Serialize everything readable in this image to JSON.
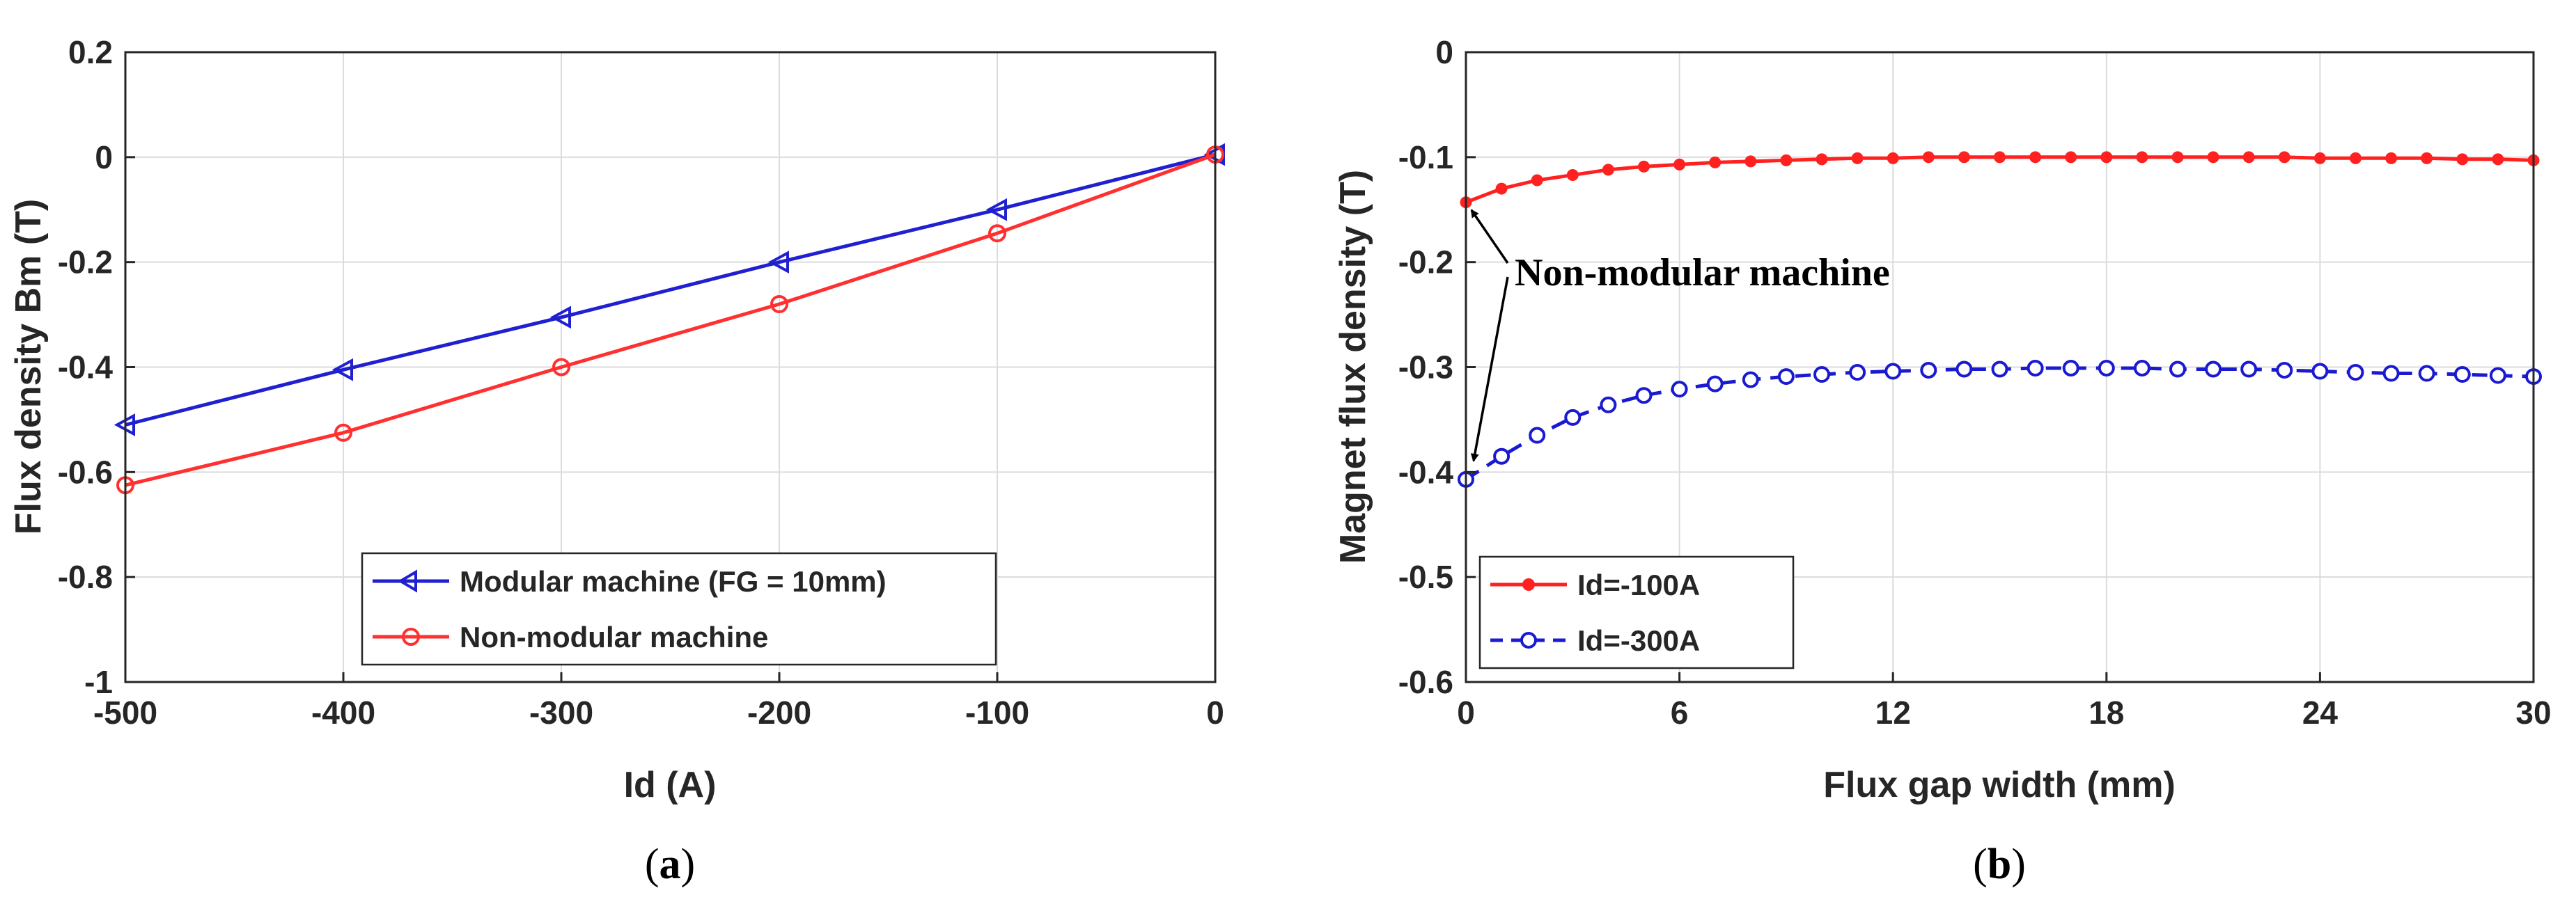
{
  "chart_data": [
    {
      "type": "line",
      "caption_prefix": "(",
      "caption_letter": "a",
      "caption_suffix": ")",
      "title": "",
      "xlabel": "Id (A)",
      "ylabel": "Flux density Bm (T)",
      "xlim": [
        -500,
        0
      ],
      "ylim": [
        -1,
        0.2
      ],
      "xticks": [
        -500,
        -400,
        -300,
        -200,
        -100,
        0
      ],
      "yticks": [
        -1,
        -0.8,
        -0.6,
        -0.4,
        -0.2,
        0,
        0.2
      ],
      "xtick_labels": [
        "-500",
        "-400",
        "-300",
        "-200",
        "-100",
        "0"
      ],
      "ytick_labels": [
        "-1",
        "-0.8",
        "-0.6",
        "-0.4",
        "-0.2",
        "0",
        "0.2"
      ],
      "grid": true,
      "legend_position": "bottom-center",
      "series": [
        {
          "name": "Modular machine (FG = 10mm)",
          "color": "#2020d0",
          "marker": "triangle-left",
          "line_style": "solid",
          "x": [
            -500,
            -400,
            -300,
            -200,
            -100,
            0
          ],
          "y": [
            -0.51,
            -0.405,
            -0.305,
            -0.2,
            -0.1,
            0.005
          ]
        },
        {
          "name": "Non-modular machine",
          "color": "#ff3030",
          "marker": "circle",
          "line_style": "solid",
          "x": [
            -500,
            -400,
            -300,
            -200,
            -100,
            0
          ],
          "y": [
            -0.625,
            -0.525,
            -0.4,
            -0.28,
            -0.145,
            0.005
          ]
        }
      ]
    },
    {
      "type": "line",
      "caption_prefix": "(",
      "caption_letter": "b",
      "caption_suffix": ")",
      "title": "",
      "xlabel": "Flux gap width (mm)",
      "ylabel": "Magnet flux density (T)",
      "xlim": [
        0,
        30
      ],
      "ylim": [
        -0.6,
        0
      ],
      "xticks": [
        0,
        6,
        12,
        18,
        24,
        30
      ],
      "yticks": [
        -0.6,
        -0.5,
        -0.4,
        -0.3,
        -0.2,
        -0.1,
        0
      ],
      "xtick_labels": [
        "0",
        "6",
        "12",
        "18",
        "24",
        "30"
      ],
      "ytick_labels": [
        "-0.6",
        "-0.5",
        "-0.4",
        "-0.3",
        "-0.2",
        "-0.1",
        "0"
      ],
      "grid": true,
      "legend_position": "bottom-left",
      "annotation": "Non-modular machine",
      "series": [
        {
          "name": "Id=-100A",
          "color": "#ff2020",
          "marker": "filled-circle",
          "line_style": "solid",
          "x": [
            0,
            1,
            2,
            3,
            4,
            5,
            6,
            7,
            8,
            9,
            10,
            11,
            12,
            13,
            14,
            15,
            16,
            17,
            18,
            19,
            20,
            21,
            22,
            23,
            24,
            25,
            26,
            27,
            28,
            29,
            30
          ],
          "y": [
            -0.143,
            -0.13,
            -0.122,
            -0.117,
            -0.112,
            -0.109,
            -0.107,
            -0.105,
            -0.104,
            -0.103,
            -0.102,
            -0.101,
            -0.101,
            -0.1,
            -0.1,
            -0.1,
            -0.1,
            -0.1,
            -0.1,
            -0.1,
            -0.1,
            -0.1,
            -0.1,
            -0.1,
            -0.101,
            -0.101,
            -0.101,
            -0.101,
            -0.102,
            -0.102,
            -0.103
          ]
        },
        {
          "name": "Id=-300A",
          "color": "#1a1ad0",
          "marker": "open-circle",
          "line_style": "dashed",
          "x": [
            0,
            1,
            2,
            3,
            4,
            5,
            6,
            7,
            8,
            9,
            10,
            11,
            12,
            13,
            14,
            15,
            16,
            17,
            18,
            19,
            20,
            21,
            22,
            23,
            24,
            25,
            26,
            27,
            28,
            29,
            30
          ],
          "y": [
            -0.407,
            -0.385,
            -0.365,
            -0.348,
            -0.336,
            -0.327,
            -0.321,
            -0.316,
            -0.312,
            -0.309,
            -0.307,
            -0.305,
            -0.304,
            -0.303,
            -0.302,
            -0.302,
            -0.301,
            -0.301,
            -0.301,
            -0.301,
            -0.302,
            -0.302,
            -0.302,
            -0.303,
            -0.304,
            -0.305,
            -0.306,
            -0.306,
            -0.307,
            -0.308,
            -0.309
          ]
        }
      ]
    }
  ]
}
